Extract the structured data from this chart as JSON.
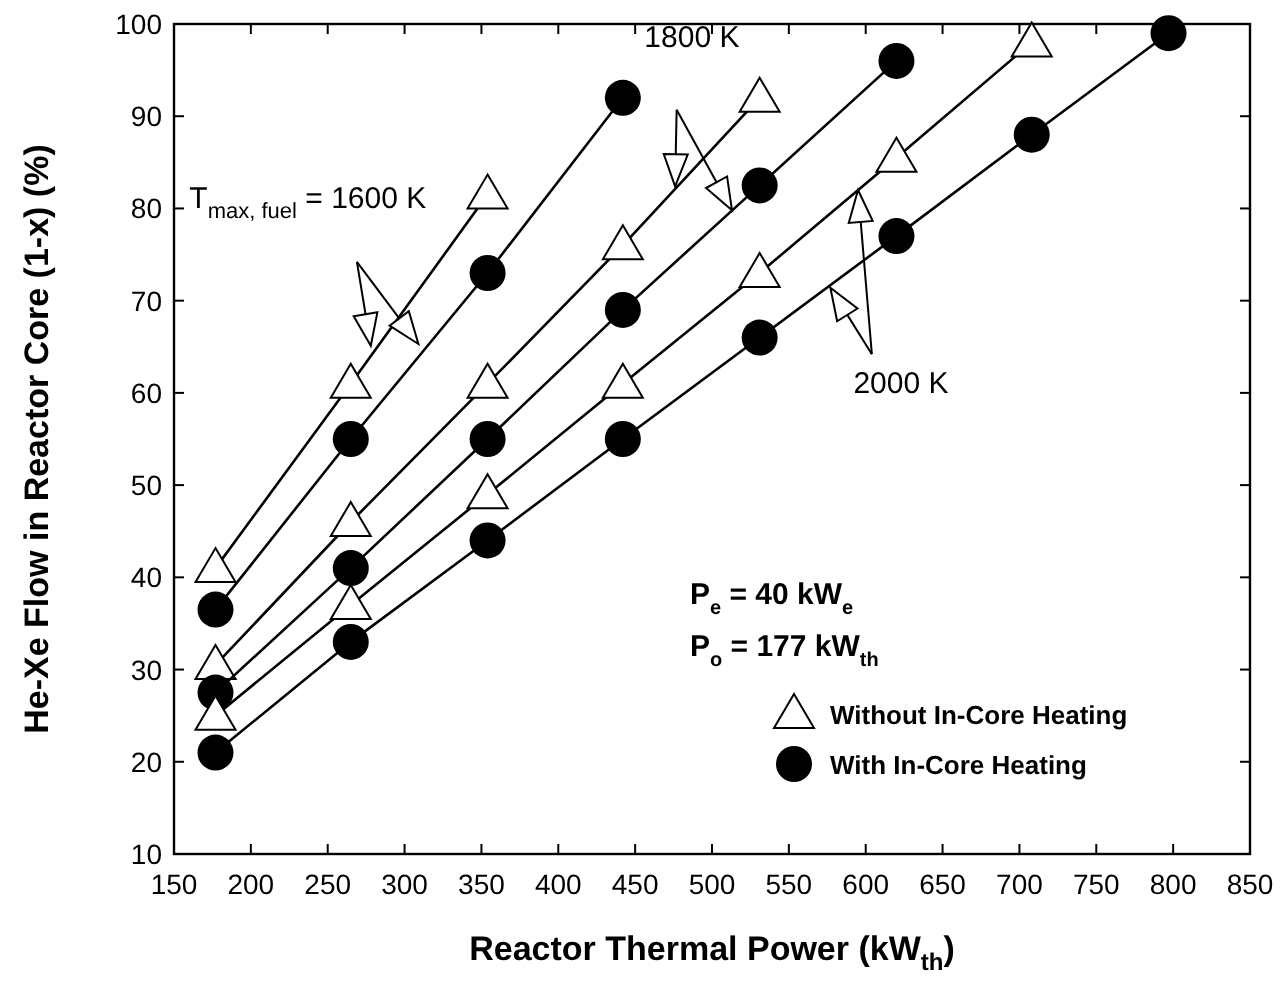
{
  "chart_data": {
    "type": "line",
    "xlabel": "Reactor Thermal Power (kW$_{th}$)",
    "ylabel": "He-Xe Flow in Reactor Core (1-x) (%)",
    "xlim": [
      150,
      850
    ],
    "xticks": [
      150,
      200,
      250,
      300,
      350,
      400,
      450,
      500,
      550,
      600,
      650,
      700,
      750,
      800,
      850
    ],
    "ylim": [
      10,
      100
    ],
    "yticks": [
      10,
      20,
      30,
      40,
      50,
      60,
      70,
      80,
      90,
      100
    ],
    "grid": false,
    "legend": "bottom right",
    "line_style": "solid",
    "series": [
      {
        "name": "Without In-Core Heating",
        "color": "#000000",
        "marker": "triangle",
        "x": [
          177,
          265,
          354
        ],
        "values": [
          41,
          61,
          81.5
        ]
      },
      {
        "name": "With In-Core Heating",
        "color": "#000000",
        "marker": "circle",
        "x": [
          177,
          265,
          354,
          442
        ],
        "values": [
          36.5,
          55,
          73,
          92
        ]
      },
      {
        "color": "#000000",
        "marker": "triangle",
        "x": [
          177,
          265,
          354,
          442,
          531
        ],
        "values": [
          30.5,
          46,
          61,
          76,
          92
        ]
      },
      {
        "color": "#000000",
        "marker": "circle",
        "x": [
          177,
          265,
          354,
          442,
          531,
          620
        ],
        "values": [
          27.5,
          41,
          55,
          69,
          82.5,
          96
        ]
      },
      {
        "color": "#000000",
        "marker": "triangle",
        "x": [
          177,
          265,
          354,
          442,
          531,
          620,
          708
        ],
        "values": [
          25,
          37,
          49,
          61,
          73,
          85.5,
          98
        ]
      },
      {
        "color": "#000000",
        "marker": "circle",
        "x": [
          177,
          265,
          354,
          442,
          531,
          620,
          708,
          797
        ],
        "values": [
          21,
          33,
          44,
          55,
          66,
          77,
          88,
          99
        ]
      }
    ],
    "annotations": [
      "T$_{max, fuel}$ = 1600 K",
      "1800 K",
      "2000 K",
      "P$_{e}$ = 40 kW$_{e}$",
      "P$_{o}$ = 177 kW$_{th}$"
    ]
  }
}
